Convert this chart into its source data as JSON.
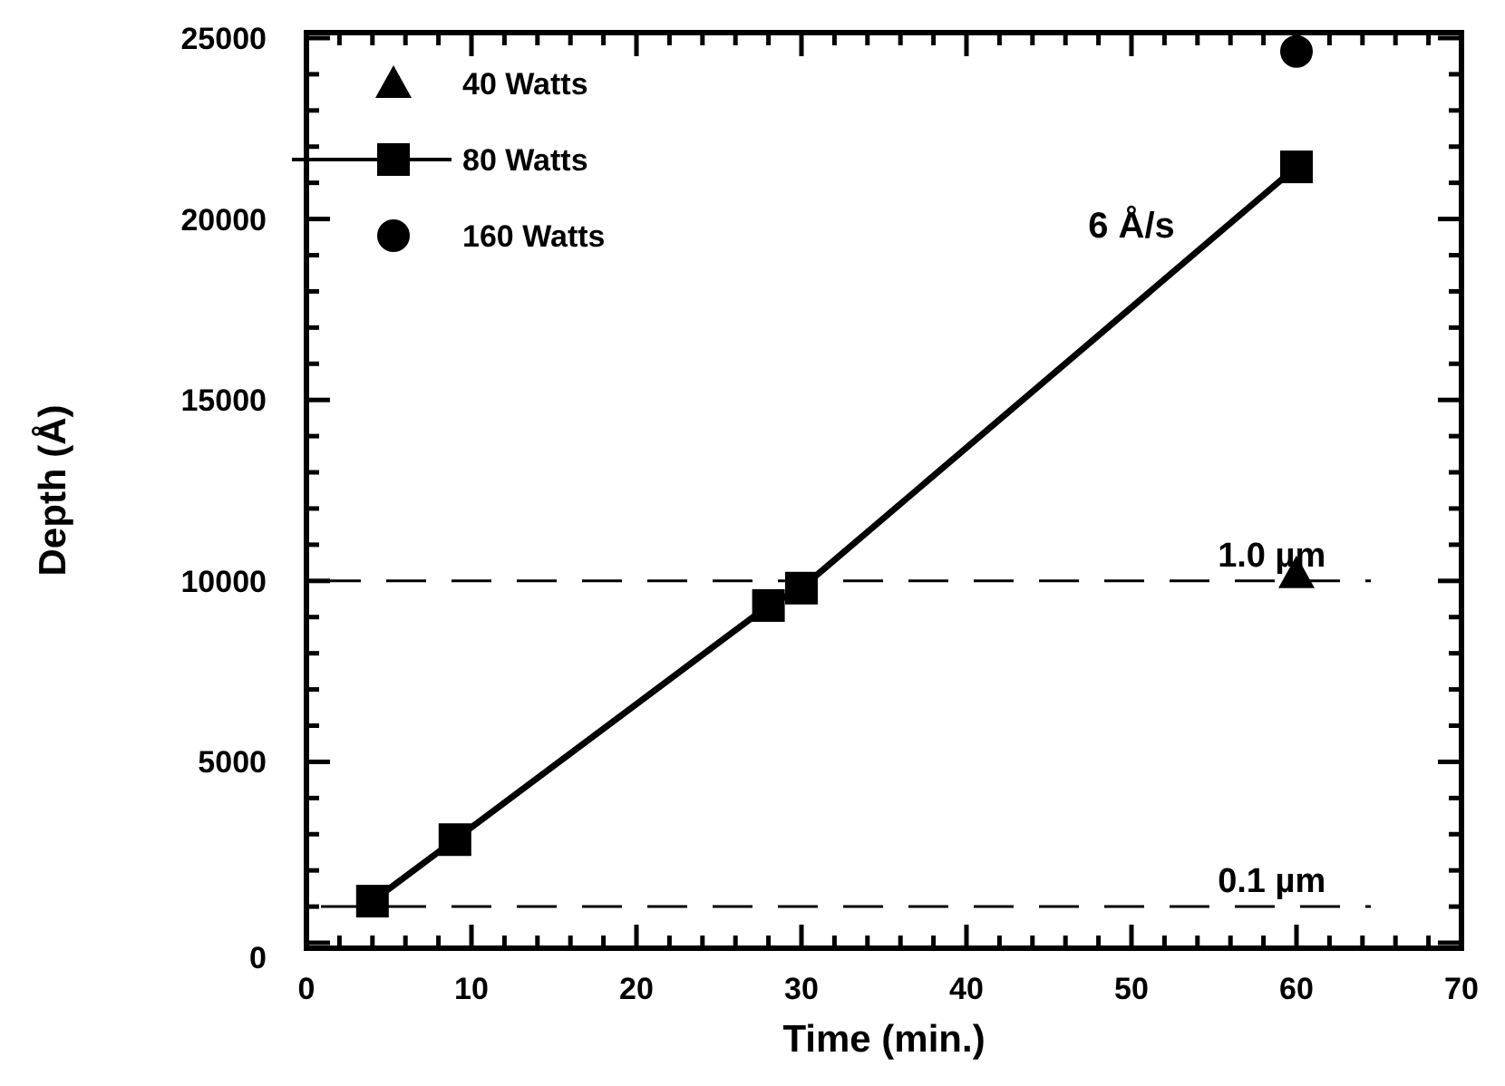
{
  "chart_data": {
    "type": "scatter",
    "xlabel": "Time (min.)",
    "ylabel": "Depth (Å)",
    "xlim": [
      0,
      70
    ],
    "ylim": [
      -150,
      25150
    ],
    "xticks": [
      0,
      {
        "value": 2,
        "label": null
      },
      {
        "value": 4,
        "label": null
      },
      {
        "value": 6,
        "label": null
      },
      {
        "value": 8,
        "label": null
      },
      10,
      {
        "value": 12,
        "label": null
      },
      {
        "value": 14,
        "label": null
      },
      {
        "value": 16,
        "label": null
      },
      {
        "value": 18,
        "label": null
      },
      20,
      {
        "value": 22,
        "label": null
      },
      {
        "value": 24,
        "label": null
      },
      {
        "value": 26,
        "label": null
      },
      {
        "value": 28,
        "label": null
      },
      30,
      {
        "value": 32,
        "label": null
      },
      {
        "value": 34,
        "label": null
      },
      {
        "value": 36,
        "label": null
      },
      {
        "value": 38,
        "label": null
      },
      40,
      {
        "value": 42,
        "label": null
      },
      {
        "value": 44,
        "label": null
      },
      {
        "value": 46,
        "label": null
      },
      {
        "value": 48,
        "label": null
      },
      50,
      {
        "value": 52,
        "label": null
      },
      {
        "value": 54,
        "label": null
      },
      {
        "value": 56,
        "label": null
      },
      {
        "value": 58,
        "label": null
      },
      60,
      {
        "value": 62,
        "label": null
      },
      {
        "value": 64,
        "label": null
      },
      {
        "value": 66,
        "label": null
      },
      {
        "value": 68,
        "label": null
      },
      70
    ],
    "yticks": [
      0,
      {
        "value": 1000,
        "label": null
      },
      {
        "value": 2000,
        "label": null
      },
      {
        "value": 3000,
        "label": null
      },
      {
        "value": 4000,
        "label": null
      },
      5000,
      {
        "value": 6000,
        "label": null
      },
      {
        "value": 7000,
        "label": null
      },
      {
        "value": 8000,
        "label": null
      },
      {
        "value": 9000,
        "label": null
      },
      10000,
      {
        "value": 11000,
        "label": null
      },
      {
        "value": 12000,
        "label": null
      },
      {
        "value": 13000,
        "label": null
      },
      {
        "value": 14000,
        "label": null
      },
      15000,
      {
        "value": 16000,
        "label": null
      },
      {
        "value": 17000,
        "label": null
      },
      {
        "value": 18000,
        "label": null
      },
      {
        "value": 19000,
        "label": null
      },
      20000,
      {
        "value": 21000,
        "label": null
      },
      {
        "value": 22000,
        "label": null
      },
      {
        "value": 23000,
        "label": null
      },
      {
        "value": 24000,
        "label": null
      },
      25000
    ],
    "series": [
      {
        "name": "40 Watts",
        "marker": "triangle",
        "color": "#000000",
        "x": [
          60
        ],
        "values": [
          10200
        ]
      },
      {
        "name": "80 Watts",
        "type": "line",
        "marker": "square",
        "line_style": "solid",
        "color": "#000000",
        "x": [
          4,
          9,
          28,
          30,
          60
        ],
        "values": [
          1150,
          2850,
          9320,
          9800,
          21440
        ]
      },
      {
        "name": "160 Watts",
        "marker": "circle",
        "color": "#000000",
        "x": [
          60
        ],
        "values": [
          24630
        ]
      }
    ],
    "ref_lines": [
      {
        "axis": "y",
        "value": 10000,
        "label": "1.0 µm",
        "line_style": "dashed",
        "color": "#000000"
      },
      {
        "axis": "y",
        "value": 1000,
        "label": "0.1 µm",
        "line_style": "dashed",
        "color": "#000000"
      }
    ],
    "annotations": [
      "6 Å/s"
    ],
    "legend": "top left",
    "grid": false
  }
}
